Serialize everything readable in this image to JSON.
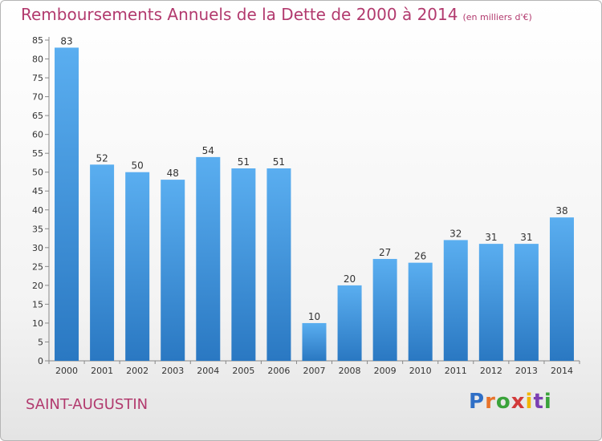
{
  "chart_data": {
    "type": "bar",
    "title": "Remboursements Annuels de la Dette de 2000 à 2014",
    "unit": "(en milliers d'€)",
    "categories": [
      "2000",
      "2001",
      "2002",
      "2003",
      "2004",
      "2005",
      "2006",
      "2007",
      "2008",
      "2009",
      "2010",
      "2011",
      "2012",
      "2013",
      "2014"
    ],
    "values": [
      83,
      52,
      50,
      48,
      54,
      51,
      51,
      10,
      20,
      27,
      26,
      32,
      31,
      31,
      38
    ],
    "ylim": [
      0,
      85
    ],
    "yticks": [
      0,
      5,
      10,
      15,
      20,
      25,
      30,
      35,
      40,
      45,
      50,
      55,
      60,
      65,
      70,
      75,
      80,
      85
    ],
    "grid": false,
    "bar_color": "#3f95d8"
  },
  "footer": {
    "place": "SAINT-AUGUSTIN",
    "logo": "Proxiti"
  }
}
